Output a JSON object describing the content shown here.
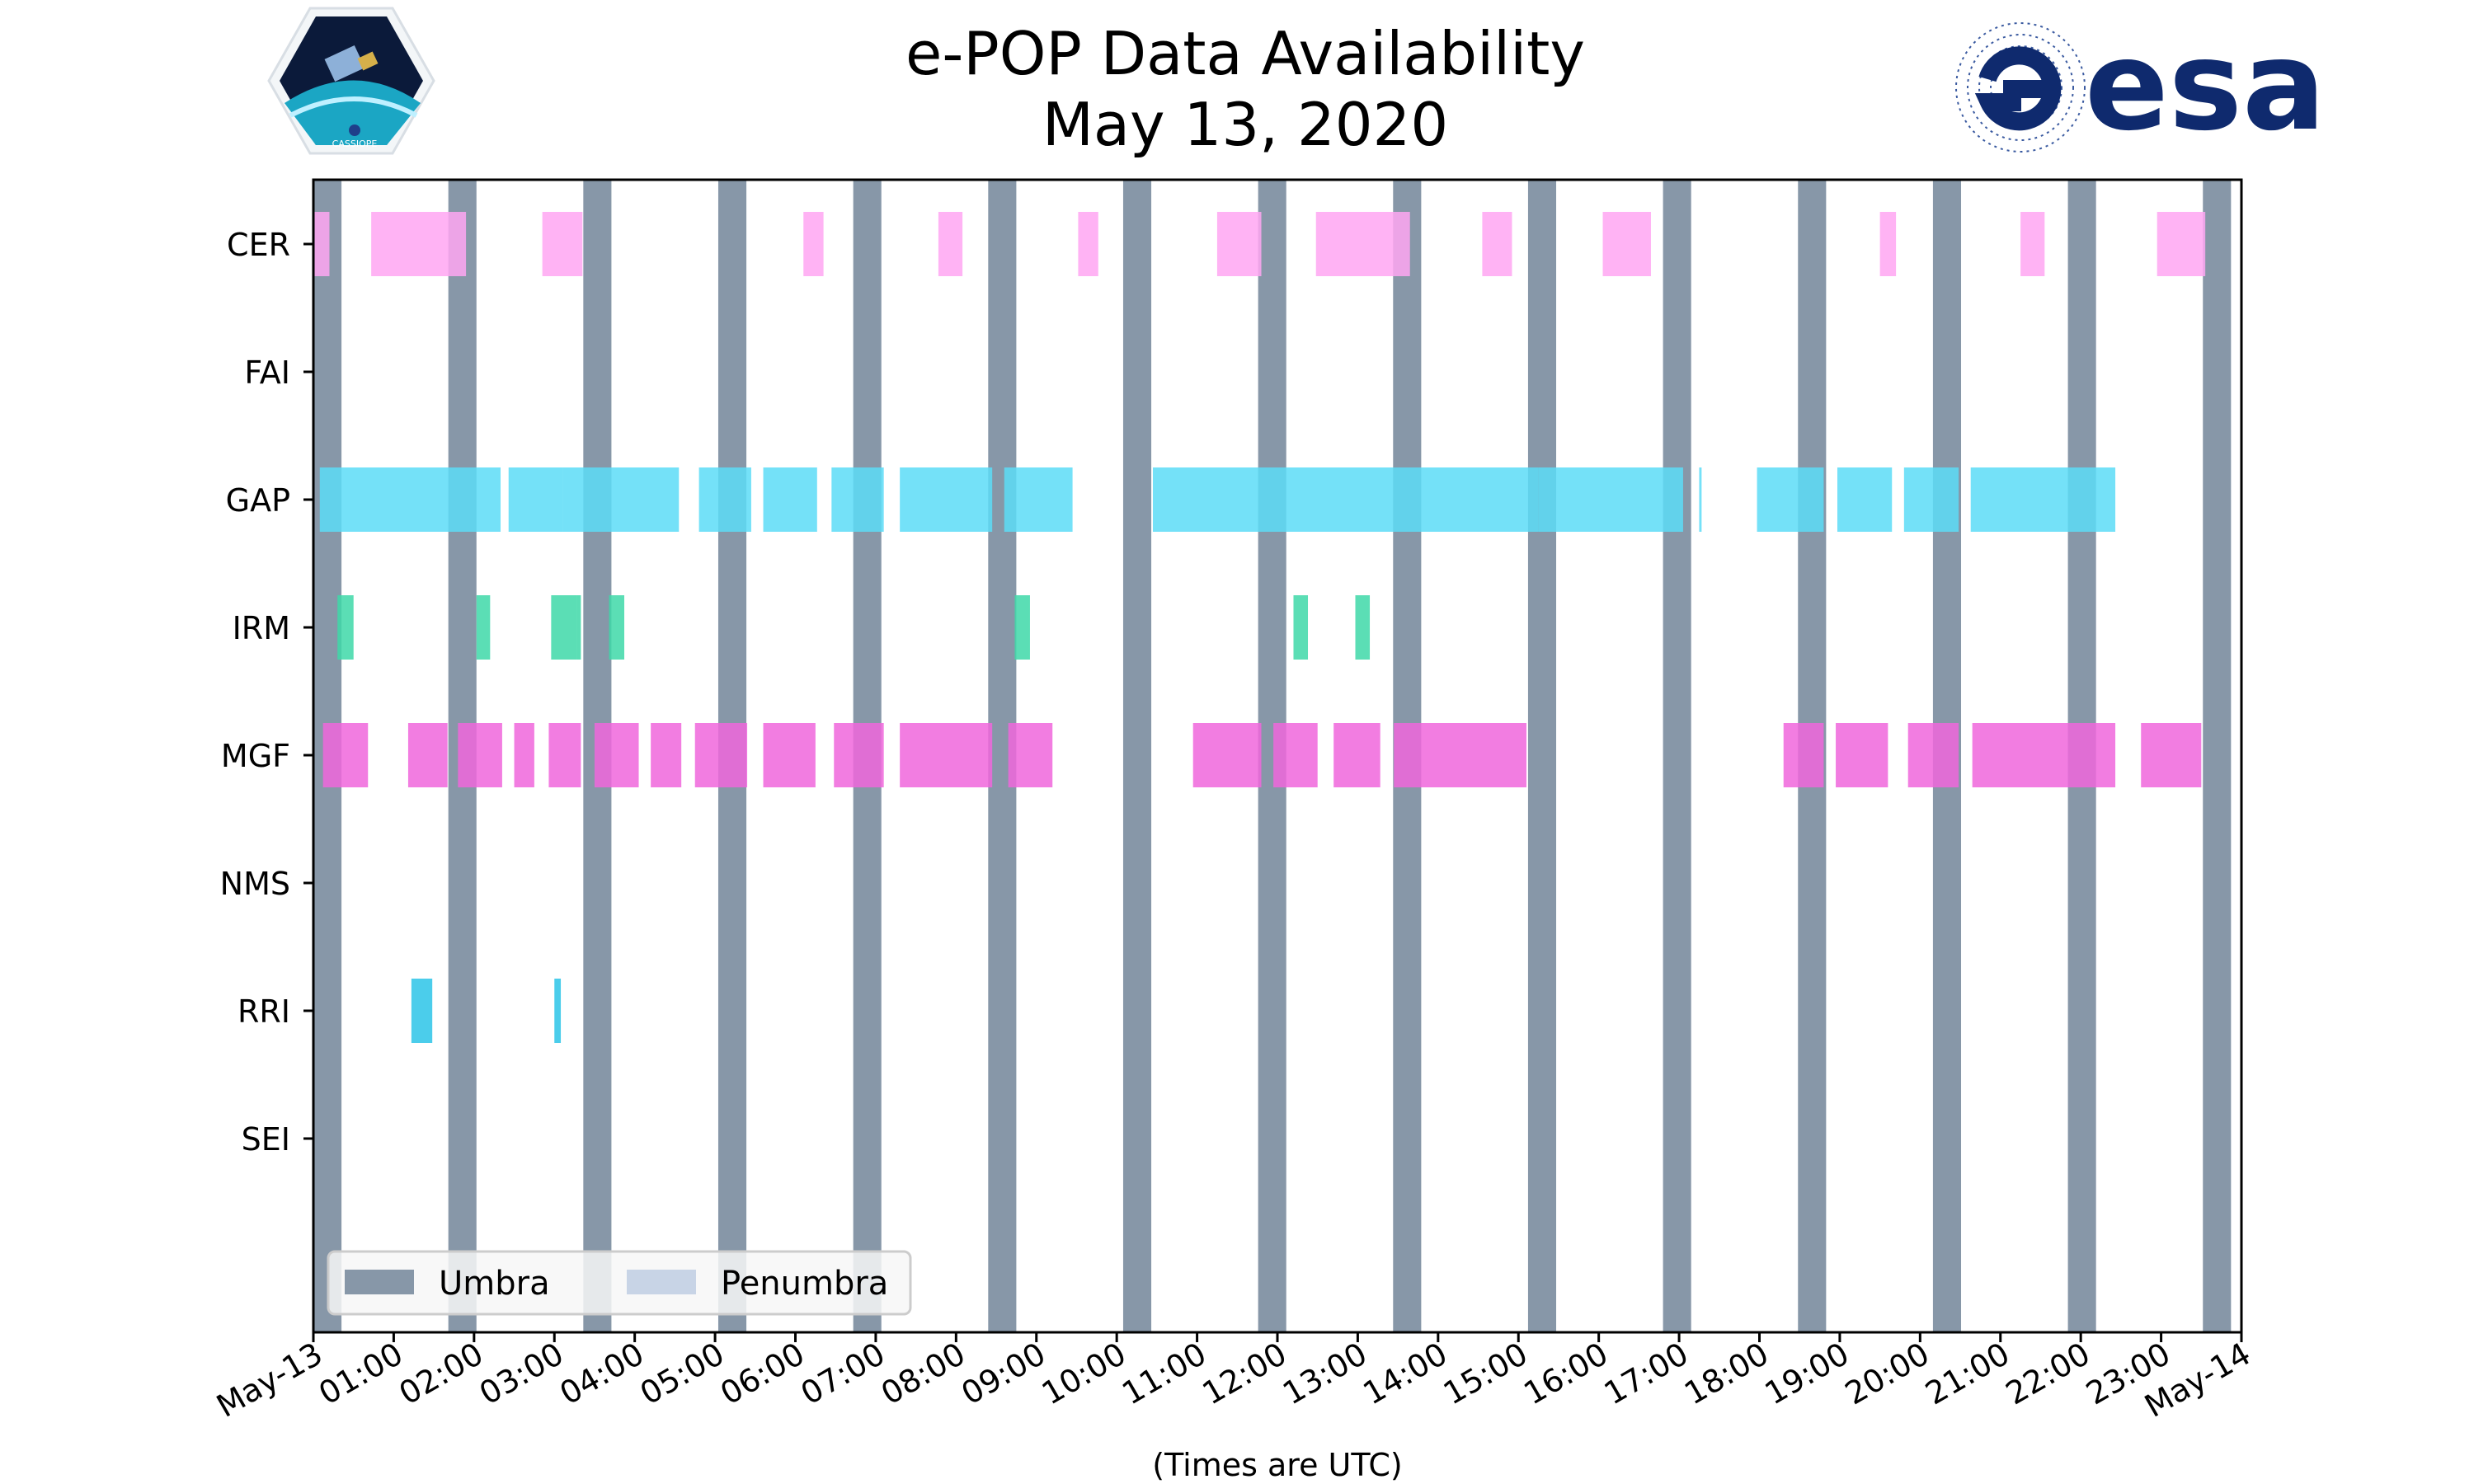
{
  "chart_data": {
    "type": "timeline",
    "title": "e-POP Data Availability",
    "subtitle": "May 13, 2020",
    "xlabel": "(Times are UTC)",
    "x_tick_labels": [
      "May-13",
      "01:00",
      "02:00",
      "03:00",
      "04:00",
      "05:00",
      "06:00",
      "07:00",
      "08:00",
      "09:00",
      "10:00",
      "11:00",
      "12:00",
      "13:00",
      "14:00",
      "15:00",
      "16:00",
      "17:00",
      "18:00",
      "19:00",
      "20:00",
      "21:00",
      "22:00",
      "23:00",
      "May-14"
    ],
    "xlim_hours": [
      0,
      24
    ],
    "instruments": [
      "CER",
      "FAI",
      "GAP",
      "IRM",
      "MGF",
      "NMS",
      "RRI",
      "SEI"
    ],
    "colors": {
      "CER": "#ffa6f2",
      "FAI": "#c8a0e8",
      "GAP": "#5cdcf7",
      "IRM": "#3ed8a8",
      "MGF": "#f066dc",
      "NMS": "#9ab0e0",
      "RRI": "#2cc4e8",
      "SEI": "#f0c060",
      "umbra": "#8797a8",
      "penumbra": "#c8d4e6"
    },
    "segments": {
      "CER": [
        [
          0.0,
          0.2
        ],
        [
          0.72,
          1.9
        ],
        [
          2.85,
          3.35
        ],
        [
          6.1,
          6.35
        ],
        [
          7.78,
          8.08
        ],
        [
          9.52,
          9.77
        ],
        [
          11.25,
          11.8
        ],
        [
          12.48,
          13.65
        ],
        [
          14.55,
          14.92
        ],
        [
          16.05,
          16.65
        ],
        [
          19.5,
          19.7
        ],
        [
          21.25,
          21.55
        ],
        [
          22.95,
          23.55
        ]
      ],
      "FAI": [],
      "GAP": [
        [
          0.08,
          2.33
        ],
        [
          2.43,
          3.11
        ],
        [
          3.11,
          4.55
        ],
        [
          4.8,
          5.45
        ],
        [
          5.6,
          6.27
        ],
        [
          6.45,
          7.1
        ],
        [
          7.3,
          8.45
        ],
        [
          8.6,
          9.45
        ],
        [
          10.45,
          15.25
        ],
        [
          15.25,
          17.05
        ],
        [
          17.25,
          17.28
        ],
        [
          17.97,
          18.8
        ],
        [
          18.97,
          19.65
        ],
        [
          19.8,
          20.48
        ],
        [
          20.63,
          22.43
        ]
      ],
      "IRM": [
        [
          0.3,
          0.5
        ],
        [
          2.03,
          2.2
        ],
        [
          2.96,
          3.28
        ],
        [
          3.28,
          3.33
        ],
        [
          3.68,
          3.87
        ],
        [
          8.73,
          8.92
        ],
        [
          12.2,
          12.38
        ],
        [
          12.97,
          13.15
        ]
      ],
      "MGF": [
        [
          0.12,
          0.68
        ],
        [
          1.18,
          1.67
        ],
        [
          1.8,
          2.35
        ],
        [
          2.5,
          2.75
        ],
        [
          2.93,
          3.33
        ],
        [
          3.5,
          4.05
        ],
        [
          4.2,
          4.58
        ],
        [
          4.75,
          5.4
        ],
        [
          5.6,
          6.25
        ],
        [
          6.48,
          7.1
        ],
        [
          7.3,
          8.45
        ],
        [
          8.65,
          9.2
        ],
        [
          10.95,
          11.8
        ],
        [
          11.95,
          12.5
        ],
        [
          12.7,
          13.28
        ],
        [
          13.45,
          15.1
        ],
        [
          18.3,
          18.8
        ],
        [
          18.95,
          19.6
        ],
        [
          19.85,
          20.48
        ],
        [
          20.65,
          22.43
        ],
        [
          22.75,
          23.5
        ]
      ],
      "NMS": [],
      "RRI": [
        [
          1.22,
          1.48
        ],
        [
          3.0,
          3.08
        ]
      ],
      "SEI": []
    },
    "umbra": [
      [
        0.0,
        0.35
      ],
      [
        1.68,
        2.03
      ],
      [
        3.36,
        3.71
      ],
      [
        5.04,
        5.39
      ],
      [
        6.72,
        7.07
      ],
      [
        8.4,
        8.75
      ],
      [
        10.08,
        10.43
      ],
      [
        11.76,
        12.11
      ],
      [
        13.44,
        13.79
      ],
      [
        15.12,
        15.47
      ],
      [
        16.8,
        17.15
      ],
      [
        18.48,
        18.83
      ],
      [
        20.16,
        20.51
      ],
      [
        21.84,
        22.19
      ],
      [
        23.52,
        23.87
      ]
    ],
    "penumbra": [],
    "legend": {
      "position": "lower-left",
      "entries": [
        "Umbra",
        "Penumbra"
      ]
    }
  },
  "logos": {
    "left_mission": "CASSIOPE",
    "right_agency": "esa"
  }
}
